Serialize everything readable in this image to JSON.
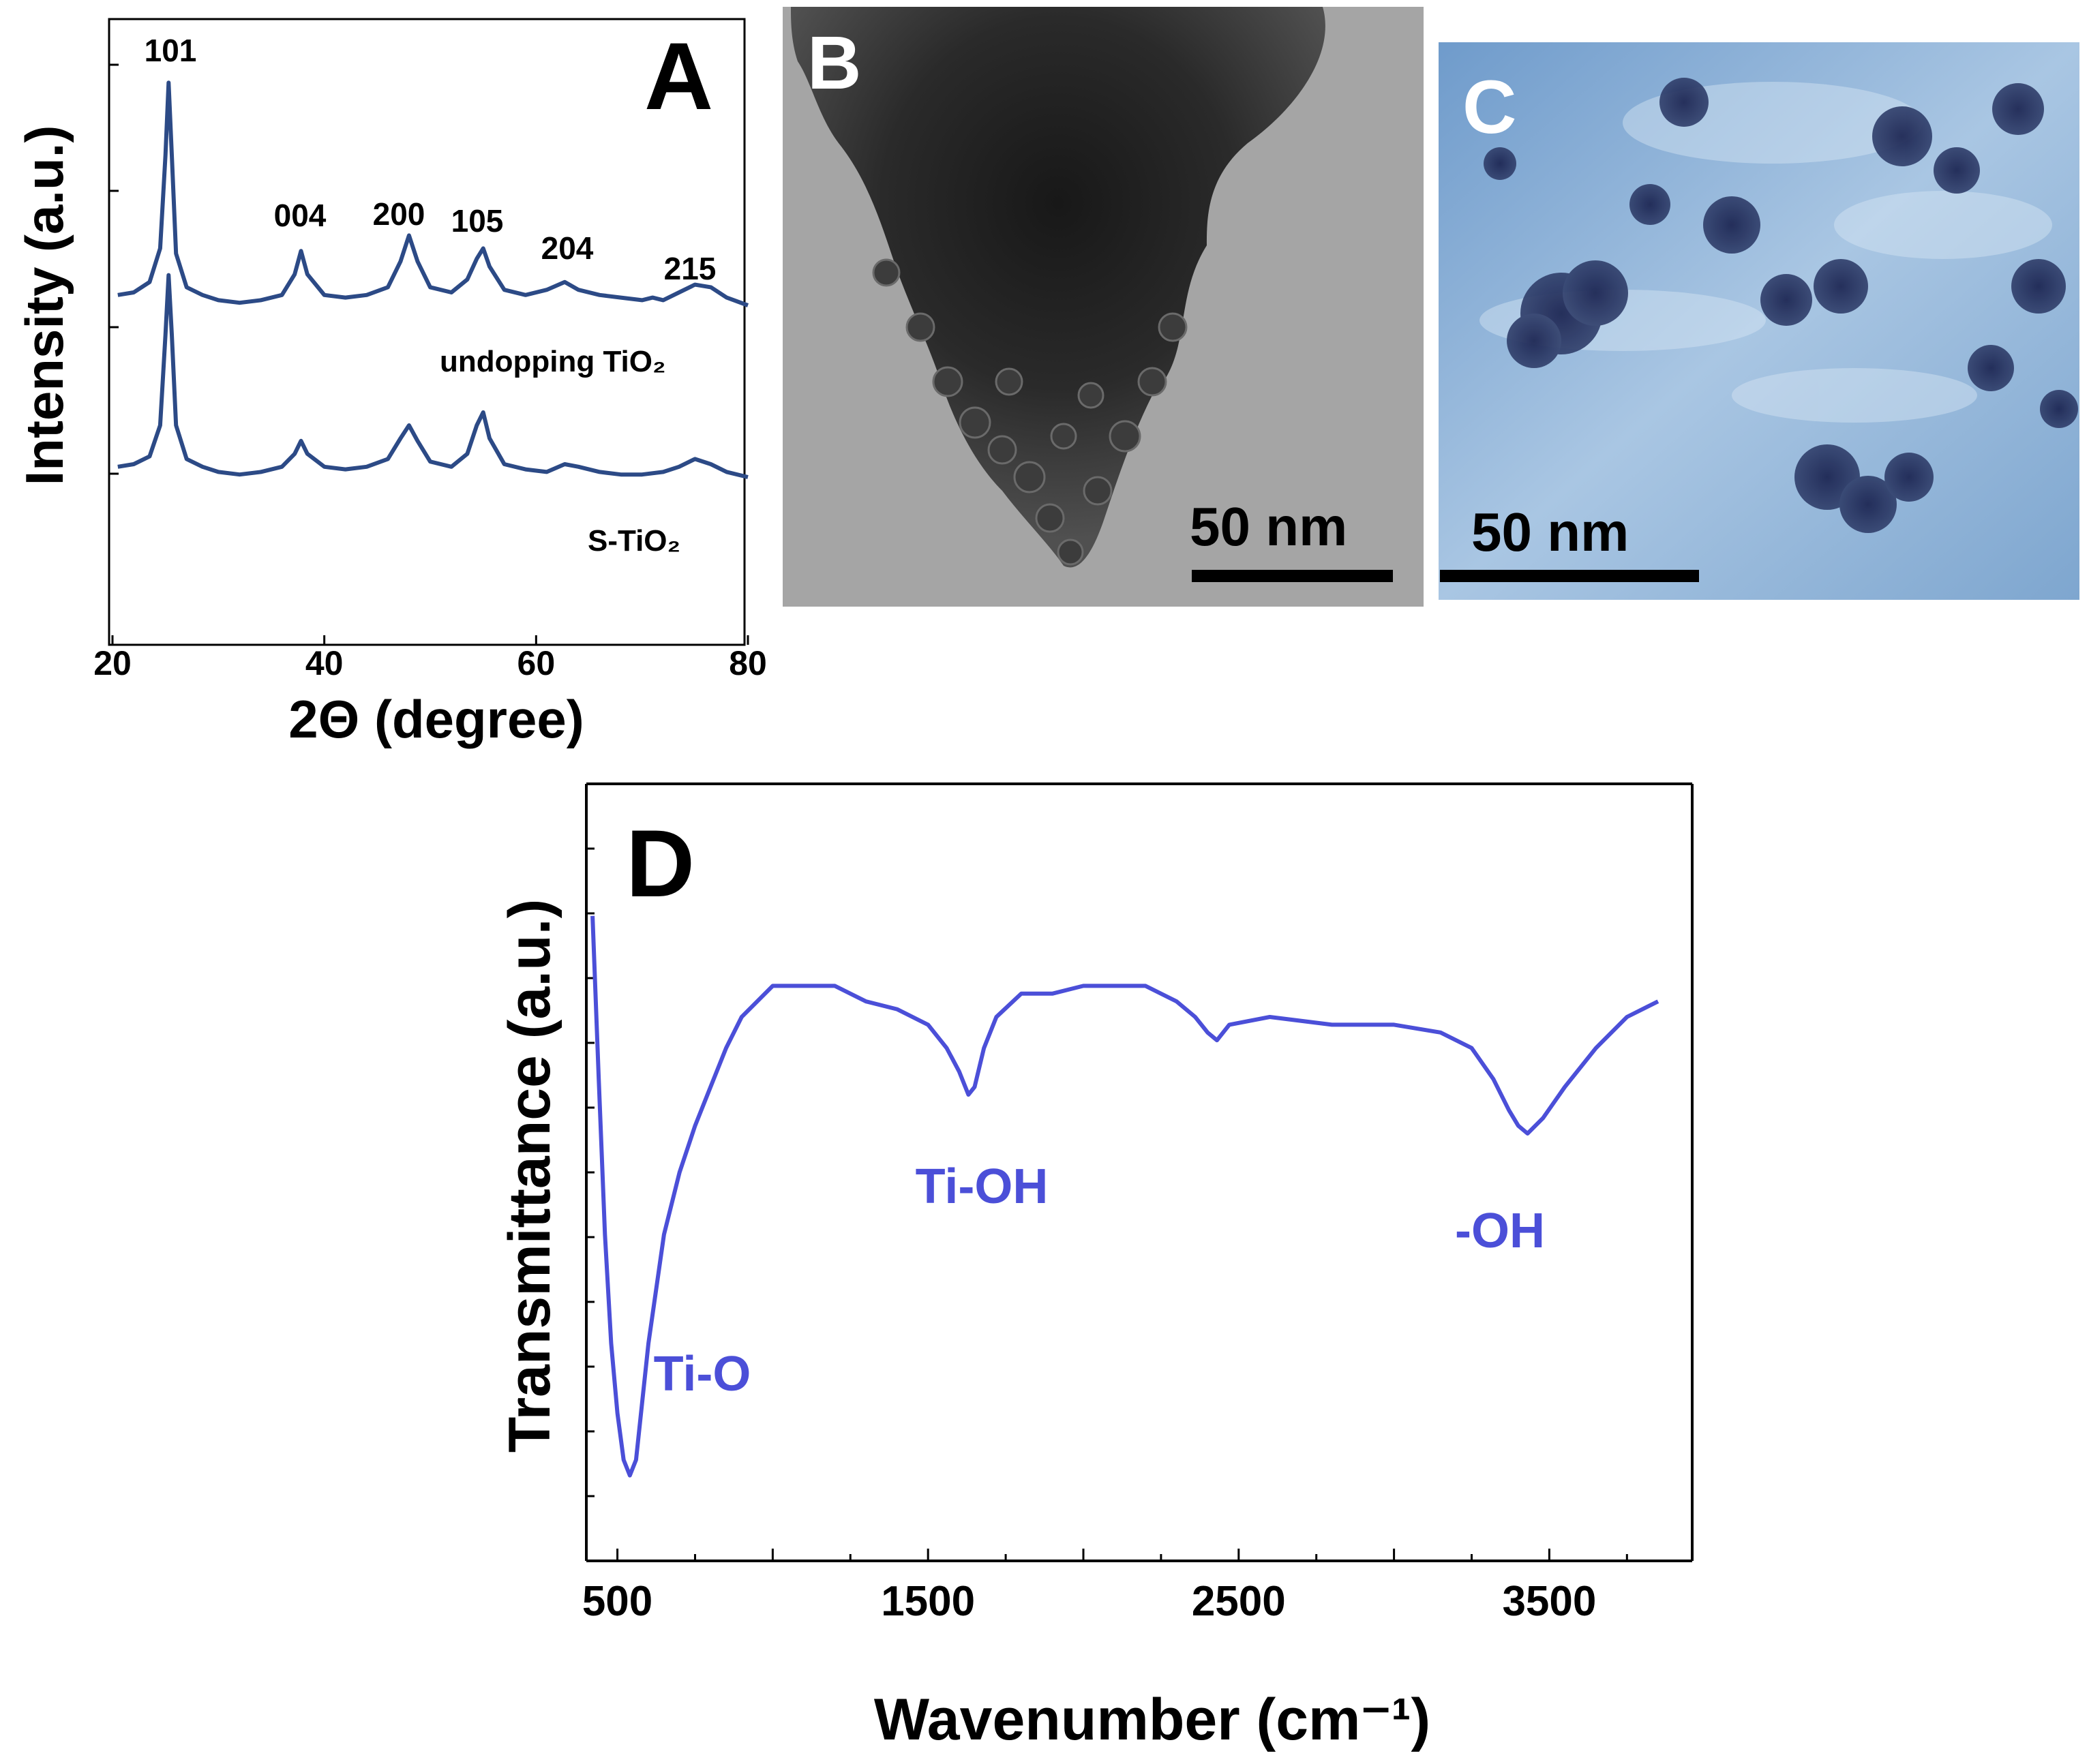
{
  "panels": {
    "a": {
      "letter": "A",
      "ylabel": "Intensity (a.u.)",
      "xlabel": "2Θ (degree)",
      "xticks": [
        "20",
        "40",
        "60",
        "80"
      ],
      "peak_labels": [
        "101",
        "004",
        "200",
        "105",
        "204",
        "215"
      ],
      "series_labels": [
        "undopping TiO₂",
        "S-TiO₂"
      ]
    },
    "b": {
      "letter": "B",
      "scale_label": "50 nm"
    },
    "c": {
      "letter": "C",
      "scale_label": "50 nm"
    },
    "d": {
      "letter": "D",
      "ylabel": "Transmittance (a.u.)",
      "xlabel": "Wavenumber (cm⁻¹)",
      "xticks": [
        "500",
        "1500",
        "2500",
        "3500"
      ],
      "band_labels": [
        "Ti-O",
        "Ti-OH",
        "-OH"
      ]
    }
  },
  "colors": {
    "xrd": "#2c4a86",
    "ftir": "#4b4fd8",
    "c_image": "#8eb2d6"
  },
  "chart_data": [
    {
      "type": "line",
      "panel": "A",
      "xlabel": "2Θ (degree)",
      "ylabel": "Intensity (a.u.)",
      "xlim": [
        20,
        80
      ],
      "xticks": [
        20,
        40,
        60,
        80
      ],
      "peaks": [
        {
          "label": "101",
          "x": 25.3
        },
        {
          "label": "004",
          "x": 37.8
        },
        {
          "label": "200",
          "x": 48.0
        },
        {
          "label": "105",
          "x": 55.0
        },
        {
          "label": "204",
          "x": 62.7
        },
        {
          "label": "215",
          "x": 75.0
        }
      ],
      "series": [
        {
          "name": "undopping TiO₂",
          "x": [
            20.5,
            22,
            23.5,
            24.5,
            25.0,
            25.3,
            25.6,
            26.0,
            27,
            28.5,
            30,
            32,
            34,
            36,
            37.2,
            37.8,
            38.4,
            40,
            42,
            44,
            46,
            47.2,
            48.0,
            48.8,
            50,
            52,
            53.5,
            54.4,
            55.0,
            55.6,
            57,
            59,
            61,
            62.7,
            64,
            66,
            68,
            70,
            71,
            72,
            73.5,
            75,
            76.5,
            78,
            80
          ],
          "y": [
            0.04,
            0.05,
            0.09,
            0.22,
            0.58,
            0.86,
            0.58,
            0.2,
            0.07,
            0.04,
            0.02,
            0.01,
            0.02,
            0.04,
            0.12,
            0.21,
            0.12,
            0.04,
            0.03,
            0.04,
            0.07,
            0.17,
            0.27,
            0.17,
            0.07,
            0.05,
            0.1,
            0.18,
            0.22,
            0.15,
            0.06,
            0.04,
            0.06,
            0.09,
            0.06,
            0.04,
            0.03,
            0.02,
            0.03,
            0.02,
            0.05,
            0.08,
            0.07,
            0.03,
            0.0
          ]
        },
        {
          "name": "S-TiO₂",
          "x": [
            20.5,
            22,
            23.5,
            24.5,
            25.0,
            25.3,
            25.6,
            26.0,
            27,
            28.5,
            30,
            32,
            34,
            36,
            37.2,
            37.8,
            38.4,
            40,
            42,
            44,
            46,
            47.2,
            48.0,
            48.8,
            50,
            52,
            53.5,
            54.4,
            55.0,
            55.6,
            57,
            59,
            61,
            62.7,
            64,
            66,
            68,
            70,
            72,
            73.5,
            75,
            76.5,
            78,
            80
          ],
          "y": [
            0.04,
            0.05,
            0.08,
            0.2,
            0.55,
            0.78,
            0.55,
            0.2,
            0.07,
            0.04,
            0.02,
            0.01,
            0.02,
            0.04,
            0.09,
            0.14,
            0.09,
            0.04,
            0.03,
            0.04,
            0.07,
            0.15,
            0.2,
            0.14,
            0.06,
            0.04,
            0.09,
            0.2,
            0.25,
            0.15,
            0.05,
            0.03,
            0.02,
            0.05,
            0.04,
            0.02,
            0.01,
            0.01,
            0.02,
            0.04,
            0.07,
            0.05,
            0.02,
            0.0
          ]
        }
      ]
    },
    {
      "type": "line",
      "panel": "D",
      "xlabel": "Wavenumber (cm⁻¹)",
      "ylabel": "Transmittance (a.u.)",
      "xlim": [
        400,
        3960
      ],
      "xticks": [
        500,
        1500,
        2500,
        3500
      ],
      "bands": [
        {
          "label": "Ti-O",
          "x": 480
        },
        {
          "label": "Ti-OH",
          "x": 1640
        },
        {
          "label": "-OH",
          "x": 3410
        }
      ],
      "series": [
        {
          "x": [
            420,
            440,
            460,
            480,
            500,
            520,
            540,
            560,
            600,
            650,
            700,
            750,
            800,
            850,
            900,
            1000,
            1100,
            1200,
            1300,
            1400,
            1500,
            1560,
            1600,
            1630,
            1650,
            1680,
            1720,
            1800,
            1900,
            2000,
            2100,
            2200,
            2300,
            2360,
            2400,
            2430,
            2470,
            2600,
            2800,
            3000,
            3150,
            3250,
            3320,
            3370,
            3400,
            3430,
            3480,
            3550,
            3650,
            3750,
            3850
          ],
          "y": [
            0.83,
            0.62,
            0.42,
            0.28,
            0.19,
            0.13,
            0.11,
            0.13,
            0.28,
            0.42,
            0.5,
            0.56,
            0.61,
            0.66,
            0.7,
            0.74,
            0.74,
            0.74,
            0.72,
            0.71,
            0.69,
            0.66,
            0.63,
            0.6,
            0.61,
            0.66,
            0.7,
            0.73,
            0.73,
            0.74,
            0.74,
            0.74,
            0.72,
            0.7,
            0.68,
            0.67,
            0.69,
            0.7,
            0.69,
            0.69,
            0.68,
            0.66,
            0.62,
            0.58,
            0.56,
            0.55,
            0.57,
            0.61,
            0.66,
            0.7,
            0.72
          ]
        }
      ]
    }
  ]
}
